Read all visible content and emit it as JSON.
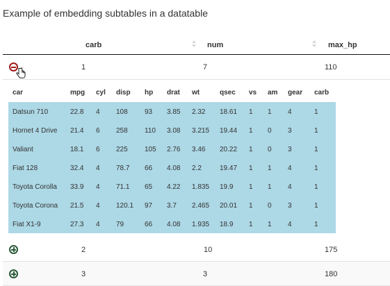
{
  "caption": "Example of embedding subtables in a datatable",
  "header": {
    "carb": "carb",
    "num": "num",
    "max_hp": "max_hp"
  },
  "rows": [
    {
      "carb": "1",
      "num": "7",
      "max_hp": "110",
      "expanded": true
    },
    {
      "carb": "2",
      "num": "10",
      "max_hp": "175",
      "expanded": false
    },
    {
      "carb": "3",
      "num": "3",
      "max_hp": "180",
      "expanded": false
    }
  ],
  "subtable": {
    "columns": [
      "car",
      "mpg",
      "cyl",
      "disp",
      "hp",
      "drat",
      "wt",
      "qsec",
      "vs",
      "am",
      "gear",
      "carb"
    ],
    "rows": [
      [
        "Datsun 710",
        "22.8",
        "4",
        "108",
        "93",
        "3.85",
        "2.32",
        "18.61",
        "1",
        "1",
        "4",
        "1"
      ],
      [
        "Hornet 4 Drive",
        "21.4",
        "6",
        "258",
        "110",
        "3.08",
        "3.215",
        "19.44",
        "1",
        "0",
        "3",
        "1"
      ],
      [
        "Valiant",
        "18.1",
        "6",
        "225",
        "105",
        "2.76",
        "3.46",
        "20.22",
        "1",
        "0",
        "3",
        "1"
      ],
      [
        "Fiat 128",
        "32.4",
        "4",
        "78.7",
        "66",
        "4.08",
        "2.2",
        "19.47",
        "1",
        "1",
        "4",
        "1"
      ],
      [
        "Toyota Corolla",
        "33.9",
        "4",
        "71.1",
        "65",
        "4.22",
        "1.835",
        "19.9",
        "1",
        "1",
        "4",
        "1"
      ],
      [
        "Toyota Corona",
        "21.5",
        "4",
        "120.1",
        "97",
        "3.7",
        "2.465",
        "20.01",
        "1",
        "0",
        "3",
        "1"
      ],
      [
        "Fiat X1-9",
        "27.3",
        "4",
        "79",
        "66",
        "4.08",
        "1.935",
        "18.9",
        "1",
        "1",
        "4",
        "1"
      ]
    ]
  },
  "colors": {
    "subtable_bg": "#add8e6",
    "collapse": "#a11a1a",
    "expand": "#2a5a3a"
  }
}
